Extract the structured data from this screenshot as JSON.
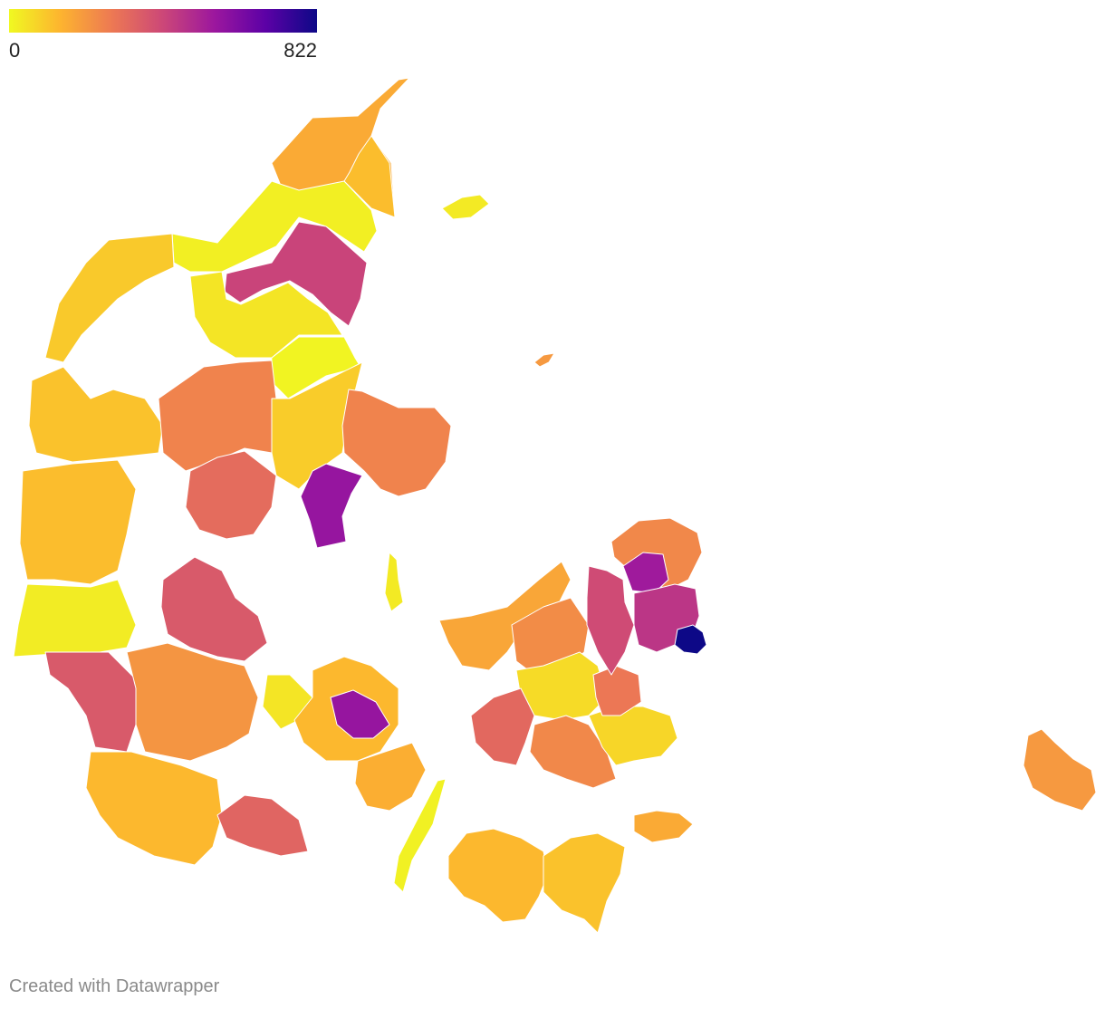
{
  "legend": {
    "min_label": "0",
    "max_label": "822",
    "gradient": [
      "#f0f921",
      "#fdb42f",
      "#ed7953",
      "#cc4778",
      "#9c179e",
      "#5c01a6",
      "#0d0887"
    ]
  },
  "credit": "Created with Datawrapper",
  "scale": {
    "min": 0,
    "max": 822
  },
  "regions": [
    {
      "id": "north-tip",
      "value": 160
    },
    {
      "id": "north-east",
      "value": 120
    },
    {
      "id": "north-west-band",
      "value": 20
    },
    {
      "id": "limfjord-north",
      "value": 420
    },
    {
      "id": "north-jutland-mid",
      "value": 40
    },
    {
      "id": "north-jutland-east",
      "value": 10
    },
    {
      "id": "thy",
      "value": 95
    },
    {
      "id": "west-jutland-north",
      "value": 110
    },
    {
      "id": "mid-jutland-west",
      "value": 120
    },
    {
      "id": "mid-jutland-center",
      "value": 250
    },
    {
      "id": "mid-jutland-east",
      "value": 90
    },
    {
      "id": "aarhus",
      "value": 560
    },
    {
      "id": "djursland",
      "value": 250
    },
    {
      "id": "mid-jutland-south",
      "value": 310
    },
    {
      "id": "south-west-coast",
      "value": 25
    },
    {
      "id": "esbjerg",
      "value": 360
    },
    {
      "id": "vejle",
      "value": 360
    },
    {
      "id": "south-jutland",
      "value": 130
    },
    {
      "id": "south-jutland-east",
      "value": 210
    },
    {
      "id": "als",
      "value": 330
    },
    {
      "id": "funen-west",
      "value": 40
    },
    {
      "id": "funen-mid",
      "value": 130
    },
    {
      "id": "odense",
      "value": 560
    },
    {
      "id": "funen-south",
      "value": 150
    },
    {
      "id": "langeland",
      "value": 15
    },
    {
      "id": "zealand-north-west",
      "value": 170
    },
    {
      "id": "zealand-west",
      "value": 230
    },
    {
      "id": "zealand-mid",
      "value": 60
    },
    {
      "id": "zealand-south-west",
      "value": 320
    },
    {
      "id": "zealand-south",
      "value": 240
    },
    {
      "id": "zealand-south-east",
      "value": 70
    },
    {
      "id": "koge",
      "value": 280
    },
    {
      "id": "north-zealand",
      "value": 240
    },
    {
      "id": "hillerod",
      "value": 540
    },
    {
      "id": "roskilde-area",
      "value": 400
    },
    {
      "id": "copenhagen-suburbs",
      "value": 460
    },
    {
      "id": "copenhagen",
      "value": 822
    },
    {
      "id": "lolland",
      "value": 130
    },
    {
      "id": "falster",
      "value": 110
    },
    {
      "id": "mon",
      "value": 160
    },
    {
      "id": "bornholm",
      "value": 200
    },
    {
      "id": "samso",
      "value": 30
    },
    {
      "id": "laeso",
      "value": 30
    },
    {
      "id": "anholt",
      "value": 200
    }
  ]
}
